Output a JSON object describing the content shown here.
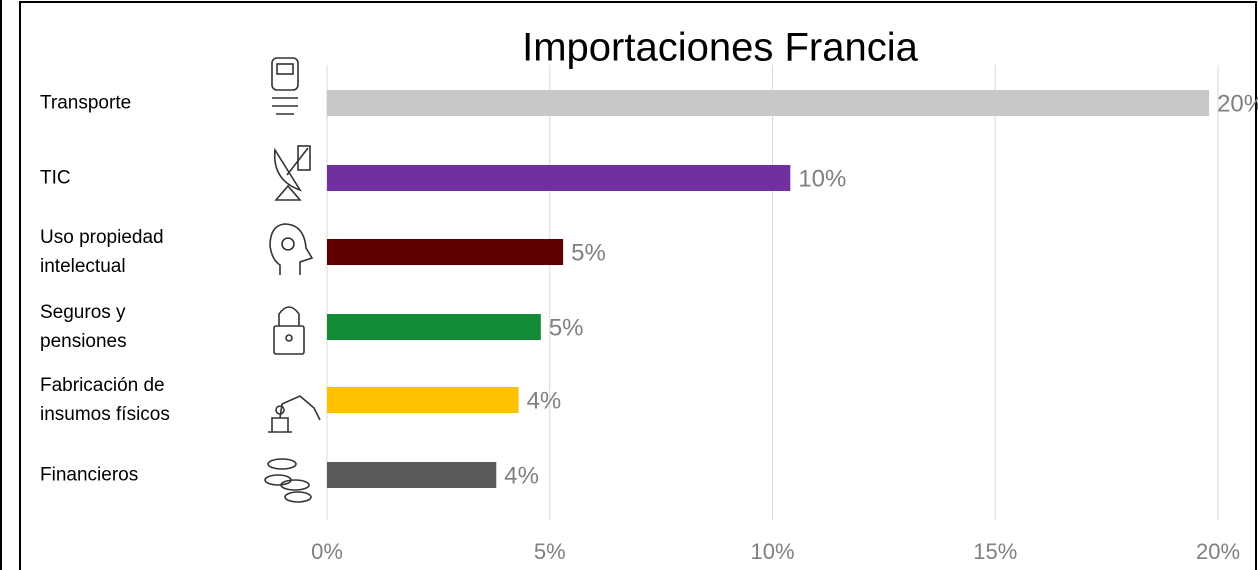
{
  "chart_data": {
    "type": "hbar",
    "title": "Importaciones Francia",
    "categories": [
      "Transporte",
      "TIC",
      "Uso propiedad intelectual",
      "Seguros y pensiones",
      "Fabricación de insumos físicos",
      "Financieros"
    ],
    "values": [
      19.8,
      10.4,
      5.3,
      4.8,
      4.3,
      3.8
    ],
    "value_labels": [
      "20%",
      "10%",
      "5%",
      "5%",
      "4%",
      "4%"
    ],
    "colors": [
      "#c8c8c8",
      "#7030a0",
      "#600000",
      "#138a36",
      "#ffc000",
      "#595959"
    ],
    "xlim": [
      0,
      20
    ],
    "xticks": [
      {
        "value": 0,
        "label": "0%"
      },
      {
        "value": 5,
        "label": "5%"
      },
      {
        "value": 10,
        "label": "10%"
      },
      {
        "value": 15,
        "label": "15%"
      },
      {
        "value": 20,
        "label": "20%"
      }
    ],
    "grid": true
  }
}
